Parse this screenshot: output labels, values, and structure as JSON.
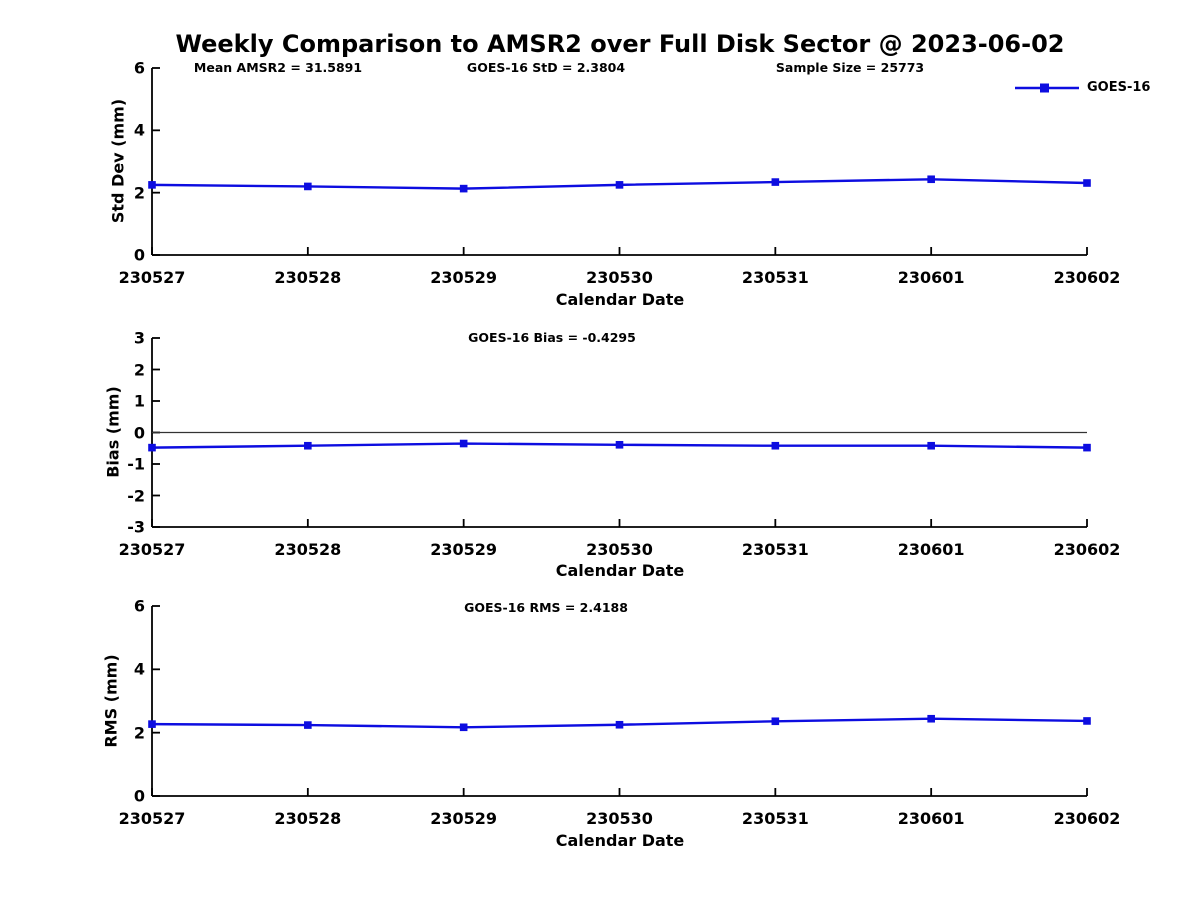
{
  "title": "Weekly Comparison to AMSR2 over Full Disk Sector @ 2023-06-02",
  "legend": {
    "label": "GOES-16",
    "position": "top-right-outside"
  },
  "colors": {
    "line": "#0D0DE0",
    "axis": "#000000",
    "zero_line": "#333333",
    "background": "#FFFFFF"
  },
  "chart_data": [
    {
      "type": "line",
      "ylabel": "Std Dev (mm)",
      "xlabel": "Calendar Date",
      "categories": [
        "230527",
        "230528",
        "230529",
        "230530",
        "230531",
        "230601",
        "230602"
      ],
      "series": [
        {
          "name": "GOES-16",
          "values": [
            2.25,
            2.2,
            2.13,
            2.25,
            2.34,
            2.43,
            2.31
          ]
        }
      ],
      "ylim": [
        0,
        6
      ],
      "yticks": [
        0,
        2,
        4,
        6
      ],
      "grid": false,
      "marker": "square",
      "annotations": [
        "Mean AMSR2 = 31.5891",
        "GOES-16 StD = 2.3804",
        "Sample Size = 25773"
      ]
    },
    {
      "type": "line",
      "ylabel": "Bias (mm)",
      "xlabel": "Calendar Date",
      "categories": [
        "230527",
        "230528",
        "230529",
        "230530",
        "230531",
        "230601",
        "230602"
      ],
      "series": [
        {
          "name": "GOES-16",
          "values": [
            -0.48,
            -0.42,
            -0.35,
            -0.39,
            -0.42,
            -0.42,
            -0.48
          ]
        }
      ],
      "ylim": [
        -3,
        3
      ],
      "yticks": [
        -3,
        -2,
        -1,
        0,
        1,
        2,
        3
      ],
      "zero_line": true,
      "grid": false,
      "marker": "square",
      "annotations": [
        "GOES-16 Bias  = -0.4295"
      ]
    },
    {
      "type": "line",
      "ylabel": "RMS (mm)",
      "xlabel": "Calendar Date",
      "categories": [
        "230527",
        "230528",
        "230529",
        "230530",
        "230531",
        "230601",
        "230602"
      ],
      "series": [
        {
          "name": "GOES-16",
          "values": [
            2.27,
            2.24,
            2.17,
            2.25,
            2.36,
            2.44,
            2.37
          ]
        }
      ],
      "ylim": [
        0,
        6
      ],
      "yticks": [
        0,
        2,
        4,
        6
      ],
      "grid": false,
      "marker": "square",
      "annotations": [
        "GOES-16 RMS = 2.4188"
      ]
    }
  ]
}
